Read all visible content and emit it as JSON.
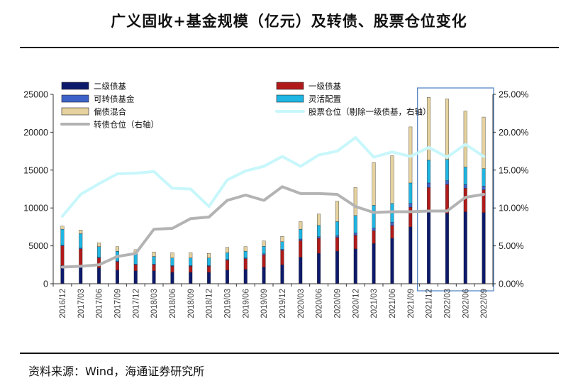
{
  "title": "广义固收+基金规模（亿元）及转债、股票仓位变化",
  "source": "资料来源：Wind，海通证券研究所",
  "colors": {
    "erji": "#0d1a6b",
    "yiji": "#b01a1a",
    "kezhuan": "#3d63c8",
    "linghuo": "#1fb6e3",
    "pianzhai": "#e6d29e",
    "stock_line": "#c8f7fb",
    "cb_line": "#b3b3b3",
    "highlight": "#4a7fc1"
  },
  "chart_data": {
    "type": "bar",
    "stacked": true,
    "categories": [
      "2016/12",
      "2017/03",
      "2017/06",
      "2017/09",
      "2017/12",
      "2018/03",
      "2018/06",
      "2018/09",
      "2018/12",
      "2019/03",
      "2019/06",
      "2019/09",
      "2019/12",
      "2020/03",
      "2020/06",
      "2020/09",
      "2020/12",
      "2021/03",
      "2021/06",
      "2021/09",
      "2021/12",
      "2022/03",
      "2022/06",
      "2022/09"
    ],
    "series": [
      {
        "name": "二级债基",
        "key": "erji",
        "axis": "left",
        "values": [
          2400,
          2400,
          2100,
          1800,
          1700,
          1700,
          1500,
          1500,
          1500,
          1800,
          1900,
          2200,
          2500,
          3500,
          4000,
          4300,
          4600,
          5300,
          6000,
          7500,
          9500,
          9300,
          9500,
          9400
        ]
      },
      {
        "name": "一级债基",
        "key": "yiji",
        "axis": "left",
        "values": [
          2600,
          2200,
          1300,
          1100,
          800,
          800,
          800,
          800,
          800,
          1300,
          1400,
          1600,
          1900,
          2200,
          2000,
          1800,
          1800,
          1700,
          1700,
          2600,
          3200,
          3800,
          3100,
          3000
        ]
      },
      {
        "name": "可转债基金",
        "key": "kezhuan",
        "axis": "left",
        "values": [
          100,
          100,
          100,
          100,
          100,
          100,
          100,
          100,
          100,
          100,
          100,
          150,
          150,
          200,
          200,
          250,
          300,
          350,
          400,
          500,
          600,
          500,
          500,
          500
        ]
      },
      {
        "name": "灵活配置",
        "key": "linghuo",
        "axis": "left",
        "values": [
          2100,
          1900,
          1400,
          1300,
          1300,
          1000,
          1000,
          1000,
          1000,
          900,
          900,
          1000,
          1000,
          1300,
          1500,
          1850,
          2300,
          3000,
          2500,
          2700,
          3000,
          2800,
          2300,
          2300
        ]
      },
      {
        "name": "偏债混合",
        "key": "pianzhai",
        "axis": "left",
        "values": [
          400,
          500,
          500,
          600,
          600,
          600,
          700,
          700,
          600,
          700,
          600,
          700,
          700,
          1000,
          1500,
          2700,
          3700,
          5650,
          6300,
          7400,
          8300,
          8000,
          7400,
          6800
        ]
      },
      {
        "name": "股票仓位（剔除一级债基，右轴）",
        "key": "stock_line",
        "axis": "right",
        "type": "line",
        "values": [
          8.9,
          11.8,
          13.2,
          14.5,
          14.6,
          14.8,
          12.6,
          12.5,
          10.2,
          13.7,
          14.9,
          15.5,
          16.8,
          15.5,
          17.0,
          17.5,
          19.3,
          16.7,
          17.4,
          16.8,
          18.0,
          16.7,
          18.4,
          16.8
        ]
      },
      {
        "name": "转债仓位（右轴）",
        "key": "cb_line",
        "axis": "right",
        "type": "line",
        "values": [
          2.2,
          2.3,
          2.5,
          3.6,
          4.0,
          7.2,
          7.3,
          8.6,
          8.8,
          11.0,
          11.7,
          11.0,
          12.8,
          11.9,
          11.9,
          11.8,
          10.2,
          9.4,
          9.5,
          9.5,
          9.6,
          9.6,
          11.4,
          11.8
        ]
      }
    ],
    "legend_labels": [
      "二级债基",
      "一级债基",
      "可转债基金",
      "灵活配置",
      "偏债混合",
      "股票仓位（剔除一级债基，右轴）",
      "转债仓位（右轴）"
    ],
    "y_left": {
      "min": 0,
      "max": 25000,
      "ticks": [
        "0",
        "5000",
        "10000",
        "15000",
        "20000",
        "25000"
      ]
    },
    "y_right": {
      "min": 0,
      "max": 25,
      "ticks": [
        "0.00%",
        "5.00%",
        "10.00%",
        "15.00%",
        "20.00%",
        "25.00%"
      ]
    },
    "highlight_range": [
      "2021/12",
      "2022/09"
    ],
    "grid": false
  }
}
